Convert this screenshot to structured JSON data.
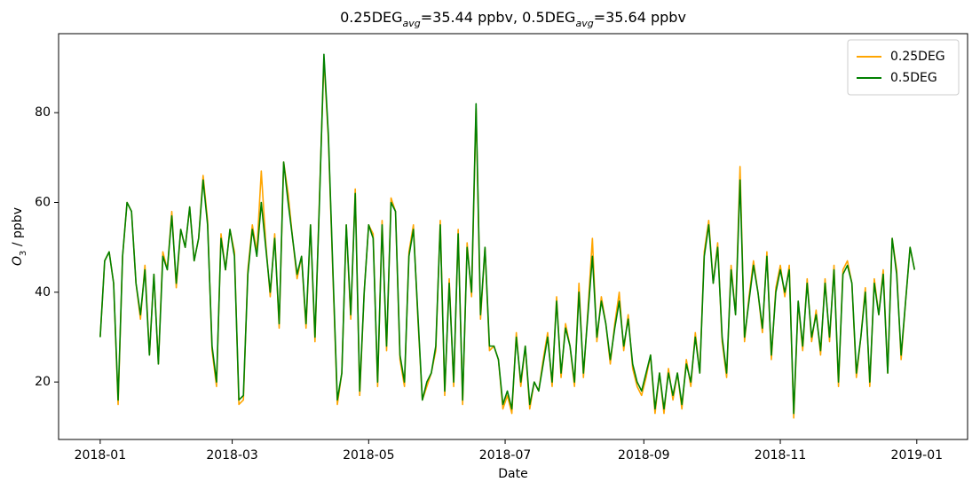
{
  "chart_data": {
    "type": "line",
    "title_parts": [
      "0.25DEG",
      "avg",
      "=35.44 ppbv, 0.5DEG",
      "avg",
      "=35.64 ppbv"
    ],
    "xlabel": "Date",
    "ylabel_parts": [
      "O",
      "3",
      " / ppbv"
    ],
    "xlim": [
      -18.6,
      387.7
    ],
    "ylim": [
      7.2,
      97.6
    ],
    "xticks": [
      {
        "value": 0,
        "label": "2018-01"
      },
      {
        "value": 59,
        "label": "2018-03"
      },
      {
        "value": 120,
        "label": "2018-05"
      },
      {
        "value": 181,
        "label": "2018-07"
      },
      {
        "value": 243,
        "label": "2018-09"
      },
      {
        "value": 304,
        "label": "2018-11"
      },
      {
        "value": 365,
        "label": "2019-01"
      }
    ],
    "yticks": [
      20,
      40,
      60,
      80
    ],
    "grid": false,
    "legend": "upper right",
    "x": [
      0,
      2,
      4,
      6,
      8,
      10,
      12,
      14,
      16,
      18,
      20,
      22,
      24,
      26,
      28,
      30,
      32,
      34,
      36,
      38,
      40,
      42,
      44,
      46,
      48,
      50,
      52,
      54,
      56,
      58,
      60,
      62,
      64,
      66,
      68,
      70,
      72,
      74,
      76,
      78,
      80,
      82,
      84,
      86,
      88,
      90,
      92,
      94,
      96,
      98,
      100,
      102,
      104,
      106,
      108,
      110,
      112,
      114,
      116,
      118,
      120,
      122,
      124,
      126,
      128,
      130,
      132,
      134,
      136,
      138,
      140,
      142,
      144,
      146,
      148,
      150,
      152,
      154,
      156,
      158,
      160,
      162,
      164,
      166,
      168,
      170,
      172,
      174,
      176,
      178,
      180,
      182,
      184,
      186,
      188,
      190,
      192,
      194,
      196,
      198,
      200,
      202,
      204,
      206,
      208,
      210,
      212,
      214,
      216,
      218,
      220,
      222,
      224,
      226,
      228,
      230,
      232,
      234,
      236,
      238,
      240,
      242,
      244,
      246,
      248,
      250,
      252,
      254,
      256,
      258,
      260,
      262,
      264,
      266,
      268,
      270,
      272,
      274,
      276,
      278,
      280,
      282,
      284,
      286,
      288,
      290,
      292,
      294,
      296,
      298,
      300,
      302,
      304,
      306,
      308,
      310,
      312,
      314,
      316,
      318,
      320,
      322,
      324,
      326,
      328,
      330,
      332,
      334,
      336,
      338,
      340,
      342,
      344,
      346,
      348,
      350,
      352,
      354,
      356,
      358,
      360,
      362,
      364
    ],
    "series": [
      {
        "name": "0.25DEG",
        "color": "#ffa500",
        "values": [
          30,
          47,
          49,
          42,
          15,
          48,
          60,
          58,
          42,
          34,
          46,
          26,
          44,
          24,
          49,
          45,
          58,
          41,
          54,
          50,
          59,
          47,
          52,
          66,
          56,
          27,
          19,
          53,
          45,
          54,
          49,
          15,
          16,
          45,
          55,
          49,
          67,
          51,
          39,
          53,
          32,
          69,
          62,
          52,
          43,
          48,
          32,
          55,
          29,
          61,
          92,
          74,
          44,
          15,
          22,
          55,
          34,
          63,
          17,
          40,
          55,
          53,
          19,
          56,
          27,
          61,
          58,
          25,
          19,
          49,
          55,
          34,
          16,
          19,
          22,
          27,
          56,
          17,
          43,
          19,
          54,
          15,
          51,
          39,
          81,
          34,
          50,
          27,
          28,
          25,
          14,
          17,
          13,
          31,
          19,
          28,
          14,
          20,
          18,
          25,
          31,
          19,
          39,
          21,
          33,
          28,
          19,
          42,
          21,
          36,
          52,
          29,
          39,
          33,
          24,
          33,
          40,
          27,
          35,
          23,
          19,
          17,
          21,
          26,
          13,
          22,
          13,
          23,
          16,
          22,
          14,
          25,
          19,
          31,
          22,
          49,
          56,
          42,
          51,
          29,
          21,
          46,
          35,
          68,
          29,
          39,
          47,
          40,
          31,
          49,
          25,
          41,
          46,
          39,
          46,
          12,
          38,
          27,
          43,
          29,
          36,
          26,
          43,
          29,
          46,
          19,
          45,
          47,
          42,
          21,
          30,
          41,
          19,
          43,
          35,
          45,
          22,
          52,
          45,
          25,
          38,
          50,
          45
        ]
      },
      {
        "name": "0.5DEG",
        "color": "#008000",
        "values": [
          30,
          47,
          49,
          42,
          16,
          48,
          60,
          58,
          42,
          35,
          45,
          26,
          44,
          24,
          48,
          45,
          57,
          42,
          54,
          50,
          59,
          47,
          52,
          65,
          55,
          28,
          20,
          52,
          45,
          54,
          48,
          16,
          17,
          44,
          54,
          48,
          60,
          50,
          40,
          52,
          33,
          69,
          60,
          52,
          44,
          48,
          33,
          55,
          30,
          60,
          93,
          75,
          45,
          16,
          22,
          55,
          35,
          62,
          18,
          40,
          55,
          52,
          20,
          55,
          28,
          60,
          58,
          26,
          20,
          48,
          54,
          35,
          16,
          20,
          22,
          28,
          55,
          18,
          42,
          20,
          53,
          16,
          50,
          40,
          82,
          35,
          50,
          28,
          28,
          25,
          15,
          18,
          14,
          30,
          20,
          28,
          15,
          20,
          18,
          24,
          30,
          20,
          38,
          22,
          32,
          28,
          20,
          40,
          22,
          35,
          48,
          30,
          38,
          33,
          25,
          32,
          38,
          28,
          34,
          24,
          20,
          18,
          22,
          26,
          14,
          22,
          14,
          22,
          17,
          22,
          15,
          24,
          20,
          30,
          22,
          48,
          55,
          42,
          50,
          30,
          22,
          45,
          35,
          65,
          30,
          38,
          46,
          40,
          32,
          48,
          26,
          40,
          45,
          40,
          45,
          13,
          38,
          28,
          42,
          30,
          35,
          27,
          42,
          30,
          45,
          20,
          44,
          46,
          42,
          22,
          30,
          40,
          20,
          42,
          35,
          44,
          22,
          52,
          44,
          26,
          38,
          50,
          45
        ]
      }
    ]
  }
}
